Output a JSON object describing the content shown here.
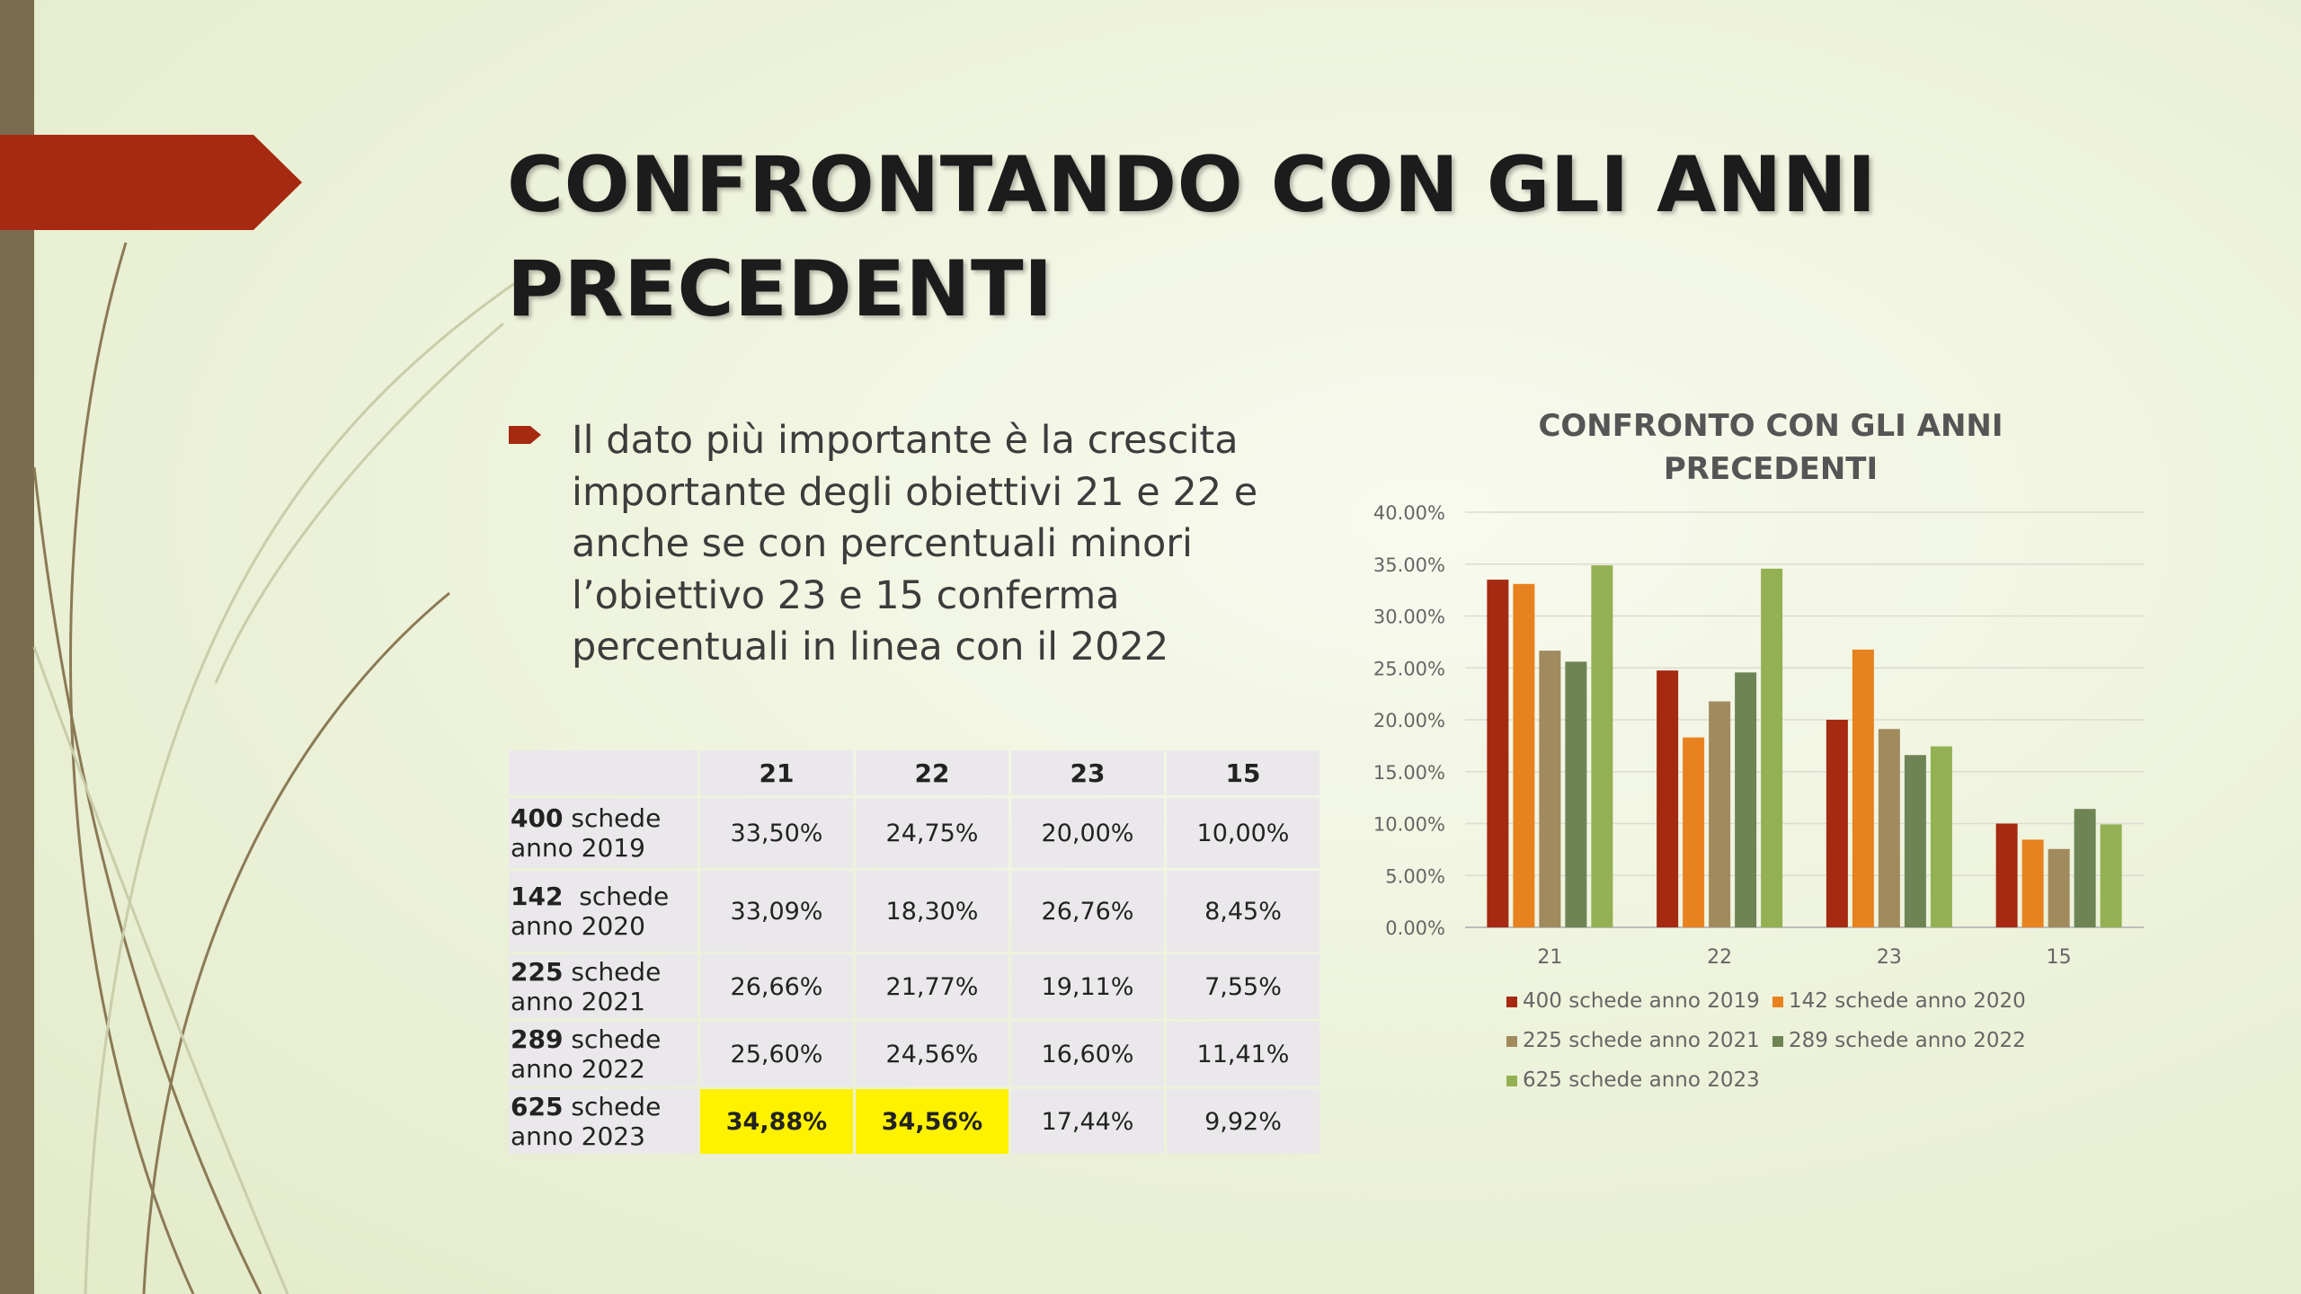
{
  "slide": {
    "title": "CONFRONTANDO CON GLI ANNI PRECEDENTI",
    "bullet": "Il dato più importante è la crescita importante degli obiettivi 21 e 22  e anche se con percentuali minori l’obiettivo 23 e 15 conferma percentuali in linea con il 2022",
    "accent_color": "#a52a11",
    "left_bar_color": "#7a6b4f"
  },
  "table": {
    "headers": [
      "",
      "21",
      "22",
      "23",
      "15"
    ],
    "rows": [
      {
        "count": "400",
        "label1": " schede",
        "label2": "anno 2019",
        "values": [
          "33,50%",
          "24,75%",
          "20,00%",
          "10,00%"
        ],
        "highlight": [
          false,
          false,
          false,
          false
        ]
      },
      {
        "count": "142",
        "label1": "  schede",
        "label2": "anno 2020",
        "values": [
          "33,09%",
          "18,30%",
          "26,76%",
          "8,45%"
        ],
        "highlight": [
          false,
          false,
          false,
          false
        ]
      },
      {
        "count": "225",
        "label1": " schede",
        "label2": "anno 2021",
        "values": [
          "26,66%",
          "21,77%",
          "19,11%",
          "7,55%"
        ],
        "highlight": [
          false,
          false,
          false,
          false
        ]
      },
      {
        "count": "289",
        "label1": " schede",
        "label2": "anno 2022",
        "values": [
          "25,60%",
          "24,56%",
          "16,60%",
          "11,41%"
        ],
        "highlight": [
          false,
          false,
          false,
          false
        ]
      },
      {
        "count": "625",
        "label1": " schede",
        "label2": "anno 2023",
        "values": [
          "34,88%",
          "34,56%",
          "17,44%",
          "9,92%"
        ],
        "highlight": [
          true,
          true,
          false,
          false
        ]
      }
    ],
    "highlight_color": "#fff200"
  },
  "chart_data": {
    "type": "bar",
    "title": "CONFRONTO CON GLI ANNI PRECEDENTI",
    "title_lines": [
      "CONFRONTO CON GLI ANNI",
      "PRECEDENTI"
    ],
    "categories": [
      "21",
      "22",
      "23",
      "15"
    ],
    "series": [
      {
        "name": "400 schede anno 2019",
        "color": "#a52a11",
        "values": [
          33.5,
          24.75,
          20.0,
          10.0
        ]
      },
      {
        "name": "142  schede anno 2020",
        "color": "#e8821e",
        "values": [
          33.09,
          18.3,
          26.76,
          8.45
        ]
      },
      {
        "name": "225 schede anno 2021",
        "color": "#a08a5e",
        "values": [
          26.66,
          21.77,
          19.11,
          7.55
        ]
      },
      {
        "name": "289 schede anno 2022",
        "color": "#6e8455",
        "values": [
          25.6,
          24.56,
          16.6,
          11.41
        ]
      },
      {
        "name": "625 schede anno 2023",
        "color": "#93b153",
        "values": [
          34.88,
          34.56,
          17.44,
          9.92
        ]
      }
    ],
    "ylim": [
      0,
      40
    ],
    "yticks": [
      "0.00%",
      "5.00%",
      "10.00%",
      "15.00%",
      "20.00%",
      "25.00%",
      "30.00%",
      "35.00%",
      "40.00%"
    ],
    "grid": true,
    "legend_position": "bottom"
  }
}
